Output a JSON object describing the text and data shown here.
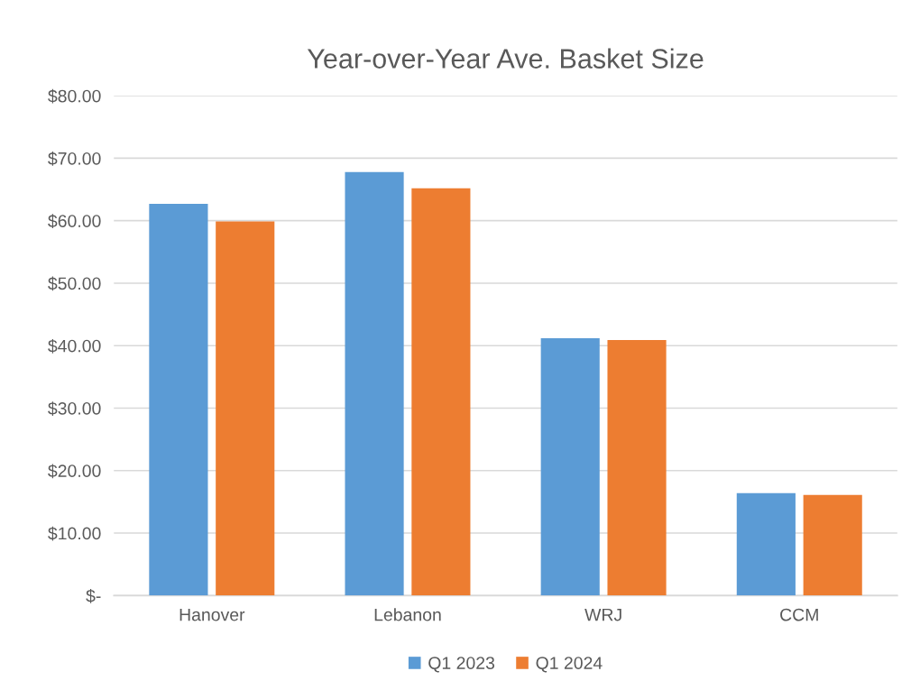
{
  "chart_data": {
    "type": "bar",
    "title": "Year-over-Year Ave. Basket Size",
    "categories": [
      "Hanover",
      "Lebanon",
      "WRJ",
      "CCM"
    ],
    "series": [
      {
        "name": "Q1 2023",
        "color": "#5b9bd5",
        "values": [
          62.7,
          67.8,
          41.2,
          16.4
        ]
      },
      {
        "name": "Q1 2024",
        "color": "#ed7d31",
        "values": [
          59.9,
          65.2,
          40.9,
          16.1
        ]
      }
    ],
    "ylim": [
      0,
      80
    ],
    "yticks": [
      {
        "value": 0,
        "label": "$-"
      },
      {
        "value": 10,
        "label": "$10.00"
      },
      {
        "value": 20,
        "label": "$20.00"
      },
      {
        "value": 30,
        "label": "$30.00"
      },
      {
        "value": 40,
        "label": "$40.00"
      },
      {
        "value": 50,
        "label": "$50.00"
      },
      {
        "value": 60,
        "label": "$60.00"
      },
      {
        "value": 70,
        "label": "$70.00"
      },
      {
        "value": 80,
        "label": "$80.00"
      }
    ],
    "grid": "y",
    "legend": "bottom"
  }
}
